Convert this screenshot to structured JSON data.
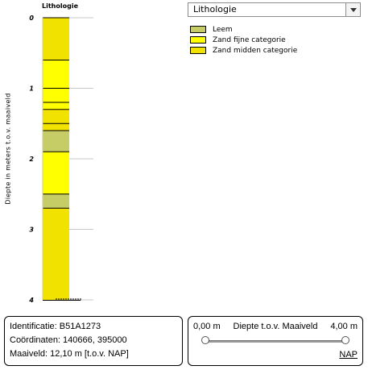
{
  "chart_data": {
    "type": "stratigraphic-column",
    "title": "Lithologie",
    "ylabel": "Diepte in meters t.o.v. maaiveld",
    "ylim": [
      0,
      4
    ],
    "yticks": [
      "0",
      "1",
      "2",
      "3",
      "4"
    ],
    "layers": [
      {
        "from": 0.0,
        "to": 0.6,
        "type": "Zand midden categorie"
      },
      {
        "from": 0.6,
        "to": 1.0,
        "type": "Zand fijne categorie"
      },
      {
        "from": 1.0,
        "to": 1.2,
        "type": "Zand fijne categorie"
      },
      {
        "from": 1.2,
        "to": 1.3,
        "type": "Zand fijne categorie"
      },
      {
        "from": 1.3,
        "to": 1.5,
        "type": "Zand midden categorie"
      },
      {
        "from": 1.5,
        "to": 1.6,
        "type": "Zand midden categorie"
      },
      {
        "from": 1.6,
        "to": 1.9,
        "type": "Leem"
      },
      {
        "from": 1.9,
        "to": 2.5,
        "type": "Zand fijne categorie"
      },
      {
        "from": 2.5,
        "to": 2.7,
        "type": "Leem"
      },
      {
        "from": 2.7,
        "to": 4.0,
        "type": "Zand midden categorie"
      }
    ]
  },
  "colors": {
    "Leem": "#c6cc66",
    "Zand fijne categorie": "#ffff00",
    "Zand midden categorie": "#f2e200"
  },
  "dropdown": {
    "selected": "Lithologie"
  },
  "legend": [
    {
      "label": "Leem"
    },
    {
      "label": "Zand fijne categorie"
    },
    {
      "label": "Zand midden categorie"
    }
  ],
  "info": {
    "identification": "Identificatie: B51A1273",
    "coordinates": "Coördinaten: 140666, 395000",
    "ground_level": "Maaiveld: 12,10 m [t.o.v. NAP]"
  },
  "depth_slider": {
    "min_label": "0,00 m",
    "title": "Diepte t.o.v. Maaiveld",
    "max_label": "4,00 m",
    "value_from": 0.0,
    "value_to": 4.0,
    "link": "NAP"
  }
}
